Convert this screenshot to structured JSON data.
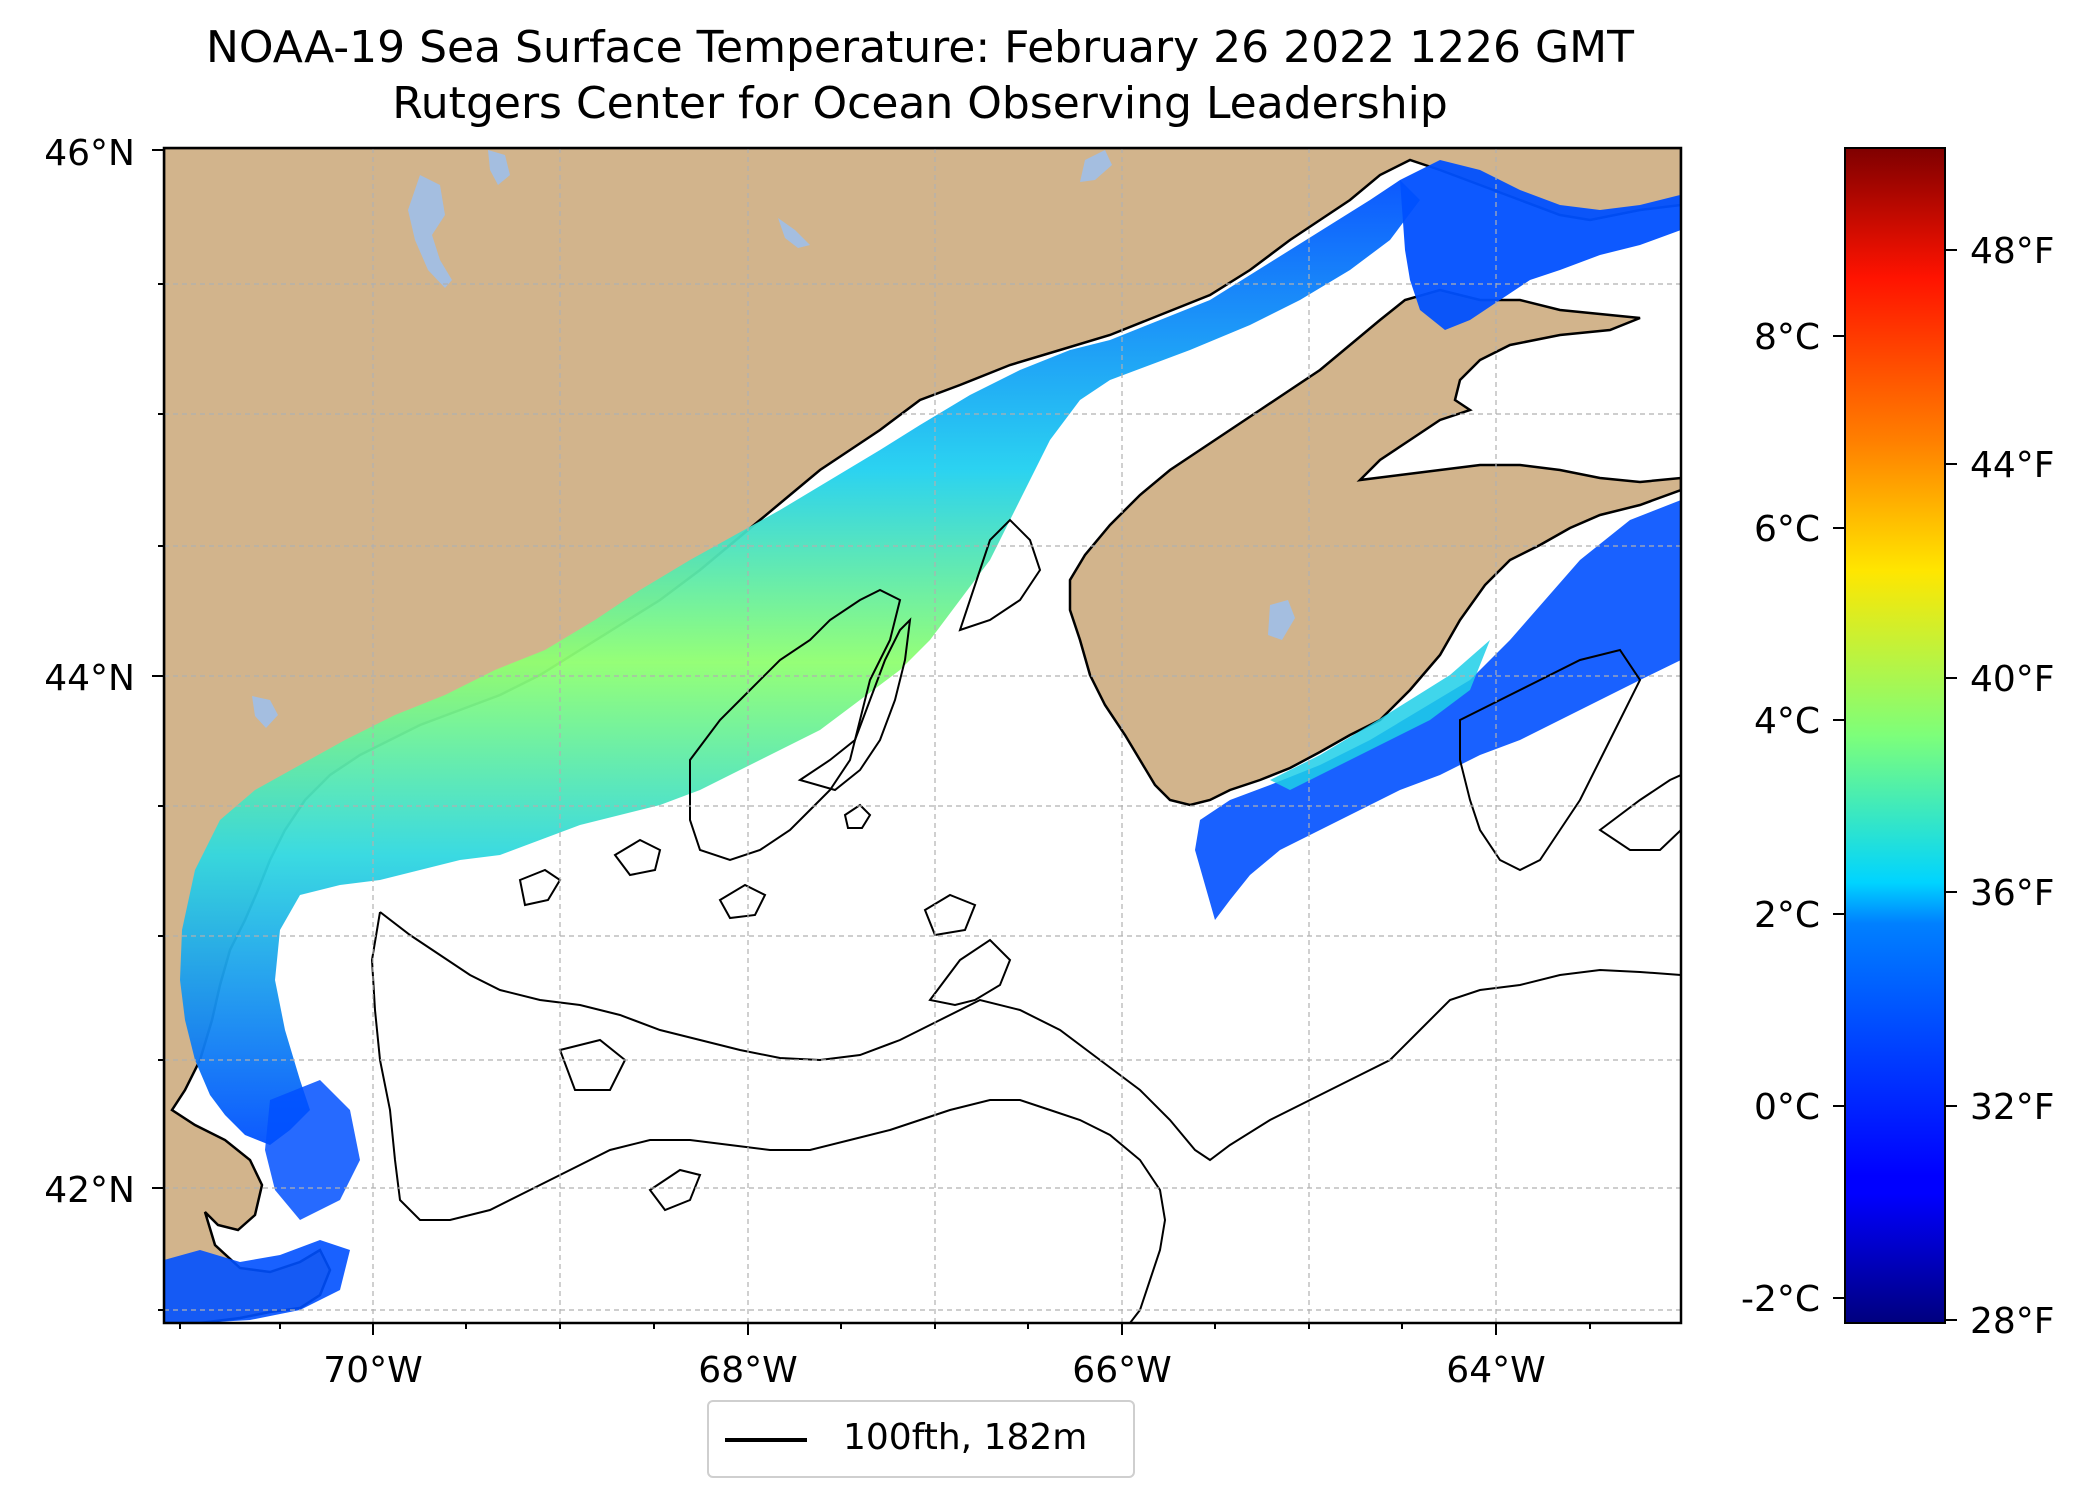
{
  "title": {
    "line1": "NOAA-19 Sea Surface Temperature: February 26 2022 1226 GMT",
    "line2": "Rutgers Center for Ocean Observing Leadership"
  },
  "map": {
    "lat_labels": [
      "46°N",
      "44°N",
      "42°N"
    ],
    "lon_labels": [
      "70°W",
      "68°W",
      "66°W",
      "64°W"
    ],
    "lon_range": [
      -71.1,
      -63.0
    ],
    "lat_range": [
      41.5,
      46.0
    ],
    "land_color": "#d2b48c",
    "water_color": "#ffffff",
    "lake_color": "#a4bee0",
    "gridline_color": "#b0b0b0"
  },
  "colorbar": {
    "colormap": "jet",
    "celsius_labels": [
      "-2°C",
      "0°C",
      "2°C",
      "4°C",
      "6°C",
      "8°C"
    ],
    "fahrenheit_labels": [
      "28°F",
      "32°F",
      "36°F",
      "40°F",
      "44°F",
      "48°F"
    ],
    "range_celsius": [
      -2.3,
      10.0
    ]
  },
  "legend": {
    "label": "100fth, 182m",
    "line_color": "#000000"
  }
}
